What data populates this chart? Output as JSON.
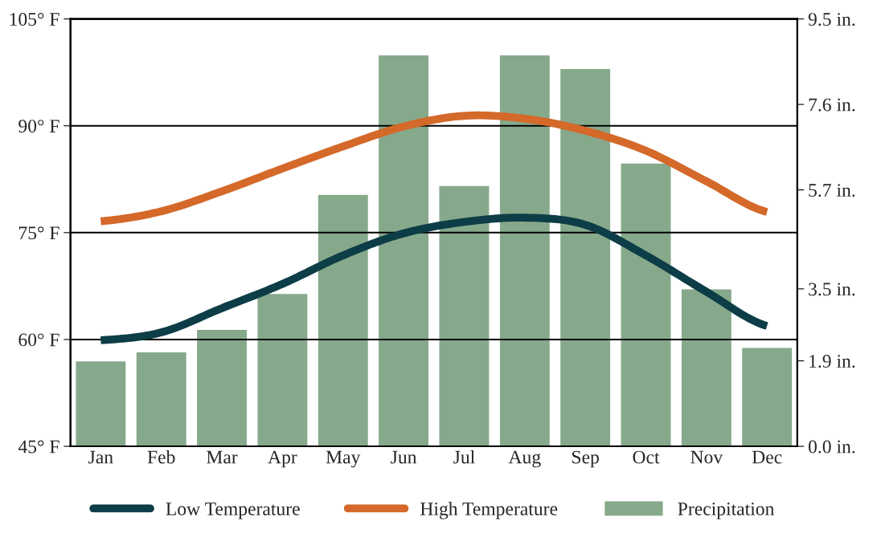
{
  "chart_data": {
    "type": "line",
    "categories": [
      "Jan",
      "Feb",
      "Mar",
      "Apr",
      "May",
      "Jun",
      "Jul",
      "Aug",
      "Sep",
      "Oct",
      "Nov",
      "Dec"
    ],
    "series": [
      {
        "name": "Low Temperature",
        "color": "#0d3d47",
        "values": [
          59.9,
          61.0,
          64.4,
          67.8,
          71.8,
          74.9,
          76.5,
          77.1,
          76.1,
          71.8,
          66.7,
          61.9
        ]
      },
      {
        "name": "High Temperature",
        "color": "#d4692a",
        "values": [
          76.6,
          78.0,
          80.8,
          84.0,
          87.1,
          89.9,
          91.4,
          91.0,
          89.3,
          86.5,
          82.2,
          77.9
        ]
      },
      {
        "name": "Precipitation",
        "type": "bar",
        "axis": "y2",
        "color": "#86a98b",
        "values": [
          1.9,
          2.1,
          2.6,
          3.4,
          5.6,
          8.7,
          5.8,
          8.7,
          8.4,
          6.3,
          3.5,
          2.2
        ]
      }
    ],
    "ylim": [
      45,
      105
    ],
    "yticks": [
      {
        "value": 45,
        "label": "45° F"
      },
      {
        "value": 60,
        "label": "60° F"
      },
      {
        "value": 75,
        "label": "75° F"
      },
      {
        "value": 90,
        "label": "90° F"
      },
      {
        "value": 105,
        "label": "105° F"
      }
    ],
    "y2lim": [
      0,
      9.5
    ],
    "y2ticks": [
      {
        "value": 0,
        "label": "0.0 in."
      },
      {
        "value": 1.9,
        "label": "1.9 in."
      },
      {
        "value": 3.5,
        "label": "3.5 in."
      },
      {
        "value": 5.7,
        "label": "5.7 in."
      },
      {
        "value": 7.6,
        "label": "7.6 in."
      },
      {
        "value": 9.5,
        "label": "9.5 in."
      }
    ],
    "grid": "y",
    "legend": "bottom",
    "line_style": "solid",
    "marker": "none"
  }
}
